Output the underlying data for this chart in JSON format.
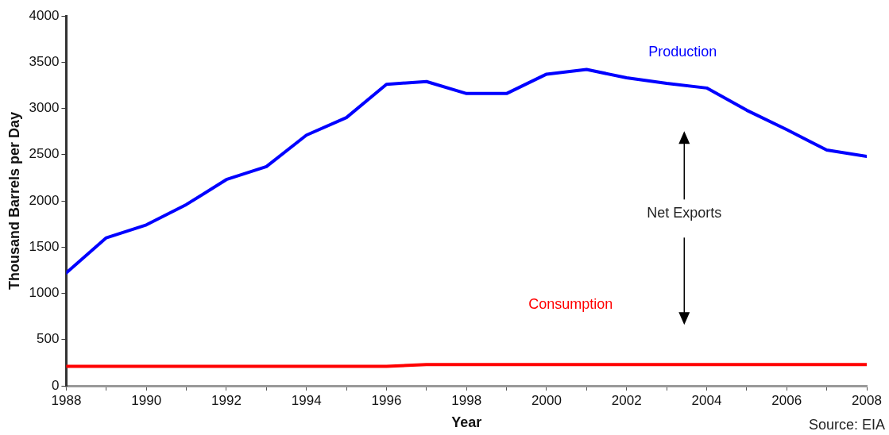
{
  "chart_data": {
    "type": "line",
    "xlabel": "Year",
    "ylabel": "Thousand Barrels per Day",
    "x": [
      1988,
      1989,
      1990,
      1991,
      1992,
      1993,
      1994,
      1995,
      1996,
      1997,
      1998,
      1999,
      2000,
      2001,
      2002,
      2003,
      2004,
      2005,
      2006,
      2007,
      2008
    ],
    "series": [
      {
        "name": "Production",
        "color": "#0000ff",
        "values": [
          1220,
          1600,
          1740,
          1960,
          2230,
          2370,
          2710,
          2900,
          3260,
          3290,
          3160,
          3160,
          3370,
          3420,
          3330,
          3270,
          3220,
          2980,
          2770,
          2550,
          2480
        ]
      },
      {
        "name": "Consumption",
        "color": "#ff0000",
        "values": [
          210,
          210,
          210,
          210,
          210,
          210,
          210,
          210,
          210,
          230,
          230,
          230,
          230,
          230,
          230,
          230,
          230,
          230,
          230,
          230,
          230
        ]
      }
    ],
    "xlim": [
      1988,
      2008
    ],
    "xticks": [
      1988,
      {
        "value": 1989,
        "label": null
      },
      1990,
      {
        "value": 1991,
        "label": null
      },
      1992,
      {
        "value": 1993,
        "label": null
      },
      1994,
      {
        "value": 1995,
        "label": null
      },
      1996,
      {
        "value": 1997,
        "label": null
      },
      1998,
      {
        "value": 1999,
        "label": null
      },
      2000,
      {
        "value": 2001,
        "label": null
      },
      2002,
      {
        "value": 2003,
        "label": null
      },
      2004,
      {
        "value": 2005,
        "label": null
      },
      2006,
      {
        "value": 2007,
        "label": null
      },
      2008
    ],
    "ylim": [
      0,
      4000
    ],
    "yticks": [
      0,
      500,
      1000,
      1500,
      2000,
      2500,
      3000,
      3500,
      4000
    ],
    "annotations": [
      "Net Exports",
      "Source: EIA"
    ],
    "legend": false,
    "marker": "none",
    "line_style": "solid"
  }
}
